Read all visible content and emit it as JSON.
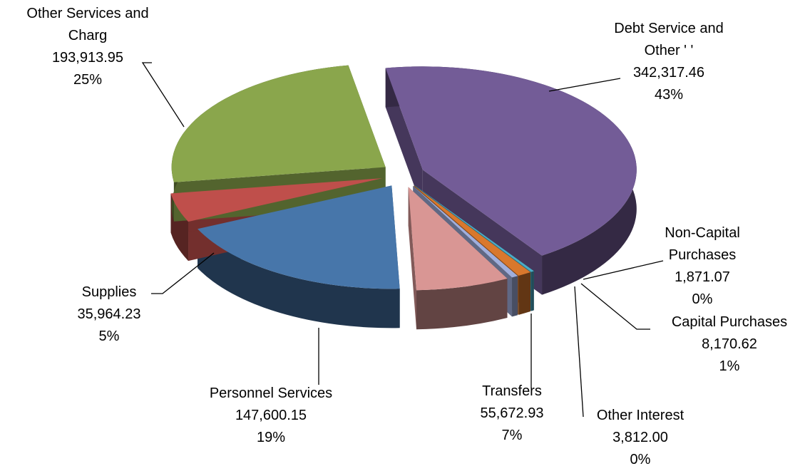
{
  "chart_data": {
    "type": "pie",
    "categories": [
      "Debt Service and Other ' '",
      "Non-Capital Purchases",
      "Capital Purchases",
      "Other Interest",
      "Transfers",
      "Personnel Services",
      "Supplies",
      "Other Services and Charg"
    ],
    "values": [
      342317.46,
      1871.07,
      8170.62,
      3812.0,
      55672.93,
      147600.15,
      35964.23,
      193913.95
    ],
    "value_labels": [
      "342,317.46",
      "1,871.07",
      "8,170.62",
      "3,812.00",
      "55,672.93",
      "147,600.15",
      "35,964.23",
      "193,913.95"
    ],
    "percent_labels": [
      "43%",
      "0%",
      "1%",
      "0%",
      "7%",
      "19%",
      "5%",
      "25%"
    ],
    "colors": [
      "#735c97",
      "#4bacc6",
      "#d9782d",
      "#a0aedc",
      "#d99694",
      "#4776aa",
      "#bf4f4b",
      "#8aa64c"
    ]
  }
}
